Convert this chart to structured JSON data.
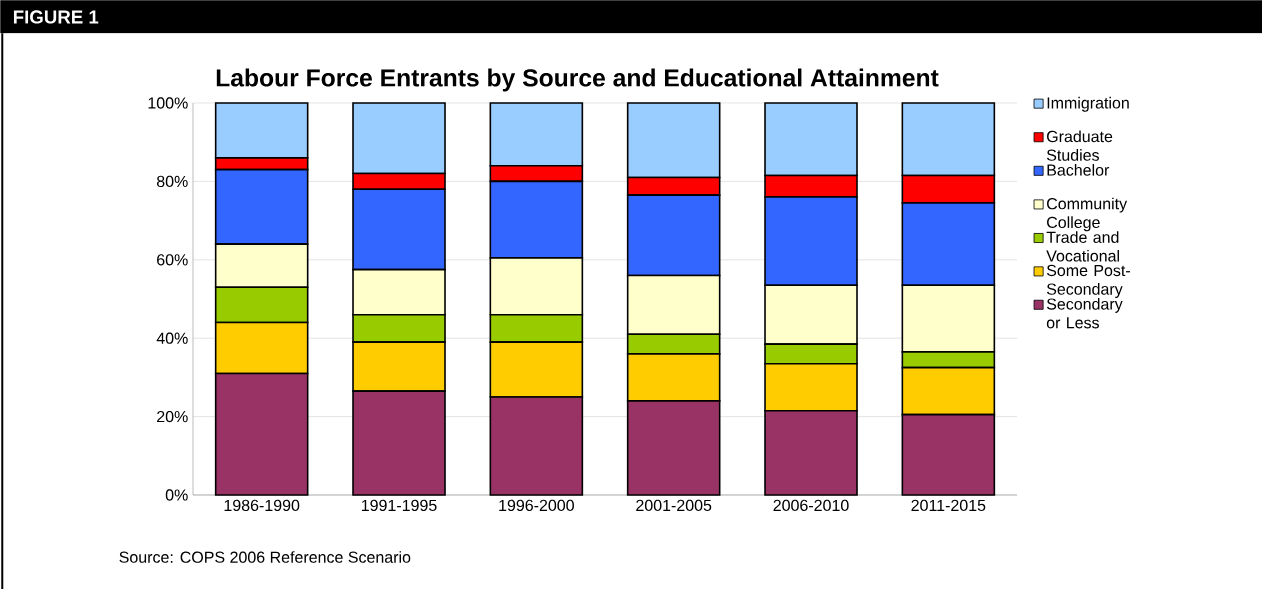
{
  "chart_data": {
    "type": "bar",
    "stacked": true,
    "title": "Labour Force Entrants by Source and Educational Attainment",
    "annotations": [
      "FIGURE 1",
      "Source: COPS 2006 Reference Scenario"
    ],
    "categories": [
      "1986-1990",
      "1991-1995",
      "1996-2000",
      "2001-2005",
      "2006-2010",
      "2011-2015"
    ],
    "series": [
      {
        "name": "Secondary or Less",
        "color": "#993366",
        "values": [
          31,
          26.5,
          25,
          24,
          21.5,
          20.5
        ]
      },
      {
        "name": "Some Post-Secondary",
        "color": "#ffcc00",
        "values": [
          13,
          12.5,
          14,
          12,
          12,
          12
        ]
      },
      {
        "name": "Trade and Vocational",
        "color": "#99cc00",
        "values": [
          9,
          7,
          7,
          5,
          5,
          4
        ]
      },
      {
        "name": "Community College",
        "color": "#ffffcc",
        "values": [
          11,
          11.5,
          14.5,
          15,
          15,
          17
        ]
      },
      {
        "name": "Bachelor",
        "color": "#3366ff",
        "values": [
          19,
          20.5,
          19.5,
          20.5,
          22.5,
          21
        ]
      },
      {
        "name": "Graduate Studies",
        "color": "#ff0000",
        "values": [
          3,
          4,
          4,
          4.5,
          5.5,
          7
        ]
      },
      {
        "name": "Immigration",
        "color": "#99ccff",
        "values": [
          14,
          18,
          16,
          19,
          18.5,
          18.5
        ]
      }
    ],
    "ylim": [
      0,
      100
    ],
    "yticks": [
      {
        "value": 0,
        "label": "0%"
      },
      {
        "value": 20,
        "label": "20%"
      },
      {
        "value": 40,
        "label": "40%"
      },
      {
        "value": 60,
        "label": "60%"
      },
      {
        "value": 80,
        "label": "80%"
      },
      {
        "value": 100,
        "label": "100%"
      }
    ],
    "grid": "y",
    "legend": "right"
  }
}
